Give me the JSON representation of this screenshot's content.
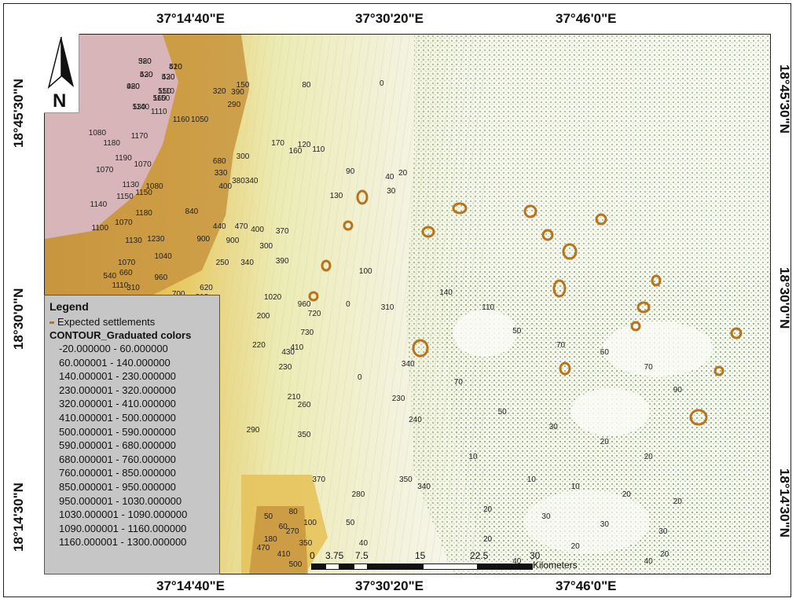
{
  "grid_labels": {
    "top": [
      "37°14'40\"E",
      "37°30'20\"E",
      "37°46'0\"E"
    ],
    "bottom": [
      "37°14'40\"E",
      "37°30'20\"E",
      "37°46'0\"E"
    ],
    "left": [
      "18°45'30\"N",
      "18°30'0\"N",
      "18°14'30\"N"
    ],
    "right": [
      "18°45'30\"N",
      "18°30'0\"N",
      "18°14'30\"N"
    ]
  },
  "north_arrow": {
    "letter": "N",
    "icon": "north-arrow-icon"
  },
  "legend": {
    "title": "Legend",
    "settlements_label": "Expected settlements",
    "settlements_color": "#b7741c",
    "group_label": "CONTOUR_Graduated colors",
    "classes": [
      "-20.000000 - 60.000000",
      "60.000001 - 140.000000",
      "140.000001 - 230.000000",
      "230.000001 - 320.000000",
      "320.000001 - 410.000000",
      "410.000001 - 500.000000",
      "500.000001 - 590.000000",
      "590.000001 - 680.000000",
      "680.000001 - 760.000000",
      "760.000001 - 850.000000",
      "850.000001 - 950.000000",
      "950.000001 - 1030.000000",
      "1030.000001 - 1090.000000",
      "1090.000001 - 1160.000000",
      "1160.000001 - 1300.000000"
    ]
  },
  "scalebar": {
    "labels": [
      "0",
      "3.75",
      "7.5",
      "15",
      "22.5",
      "30"
    ],
    "unit": "Kilometers"
  },
  "contour_labels": [
    "520",
    "520",
    "420",
    "430",
    "920",
    "1110",
    "1150",
    "1140",
    "1110",
    "1160",
    "1050",
    "320",
    "390",
    "290",
    "150",
    "80",
    "1080",
    "1180",
    "1170",
    "1190",
    "1070",
    "1070",
    "1150",
    "1130",
    "1150",
    "1080",
    "680",
    "330",
    "380",
    "300",
    "400",
    "340",
    "170",
    "160",
    "120",
    "110",
    "90",
    "130",
    "40",
    "20",
    "0",
    "30",
    "100",
    "0",
    "0",
    "1140",
    "1100",
    "1070",
    "1180",
    "1130",
    "1230",
    "1040",
    "1070",
    "960",
    "1110",
    "840",
    "900",
    "440",
    "470",
    "400",
    "370",
    "300",
    "250",
    "340",
    "900",
    "390",
    "540",
    "660",
    "310",
    "780",
    "700",
    "810",
    "620",
    "1020",
    "960",
    "720",
    "730",
    "410",
    "430",
    "200",
    "220",
    "230",
    "210",
    "260",
    "290",
    "350",
    "370",
    "280",
    "350",
    "340",
    "310",
    "340",
    "230",
    "240",
    "140",
    "110",
    "50",
    "70",
    "60",
    "70",
    "90",
    "70",
    "50",
    "30",
    "20",
    "20",
    "10",
    "10",
    "10",
    "20",
    "20",
    "20",
    "30",
    "30",
    "30",
    "20",
    "20",
    "20",
    "40",
    "40",
    "40",
    "50",
    "50",
    "60",
    "80",
    "100",
    "180",
    "270",
    "350",
    "470",
    "410",
    "500",
    "380",
    "410",
    "530",
    "520",
    "480",
    "550",
    "560",
    "530"
  ],
  "colors": {
    "high": "#d9b9bf",
    "upper": "#c28f43",
    "mid": "#e6c35b",
    "lowmid": "#e9e7a9",
    "low": "#8ba973",
    "settlement": "#b7741c"
  }
}
